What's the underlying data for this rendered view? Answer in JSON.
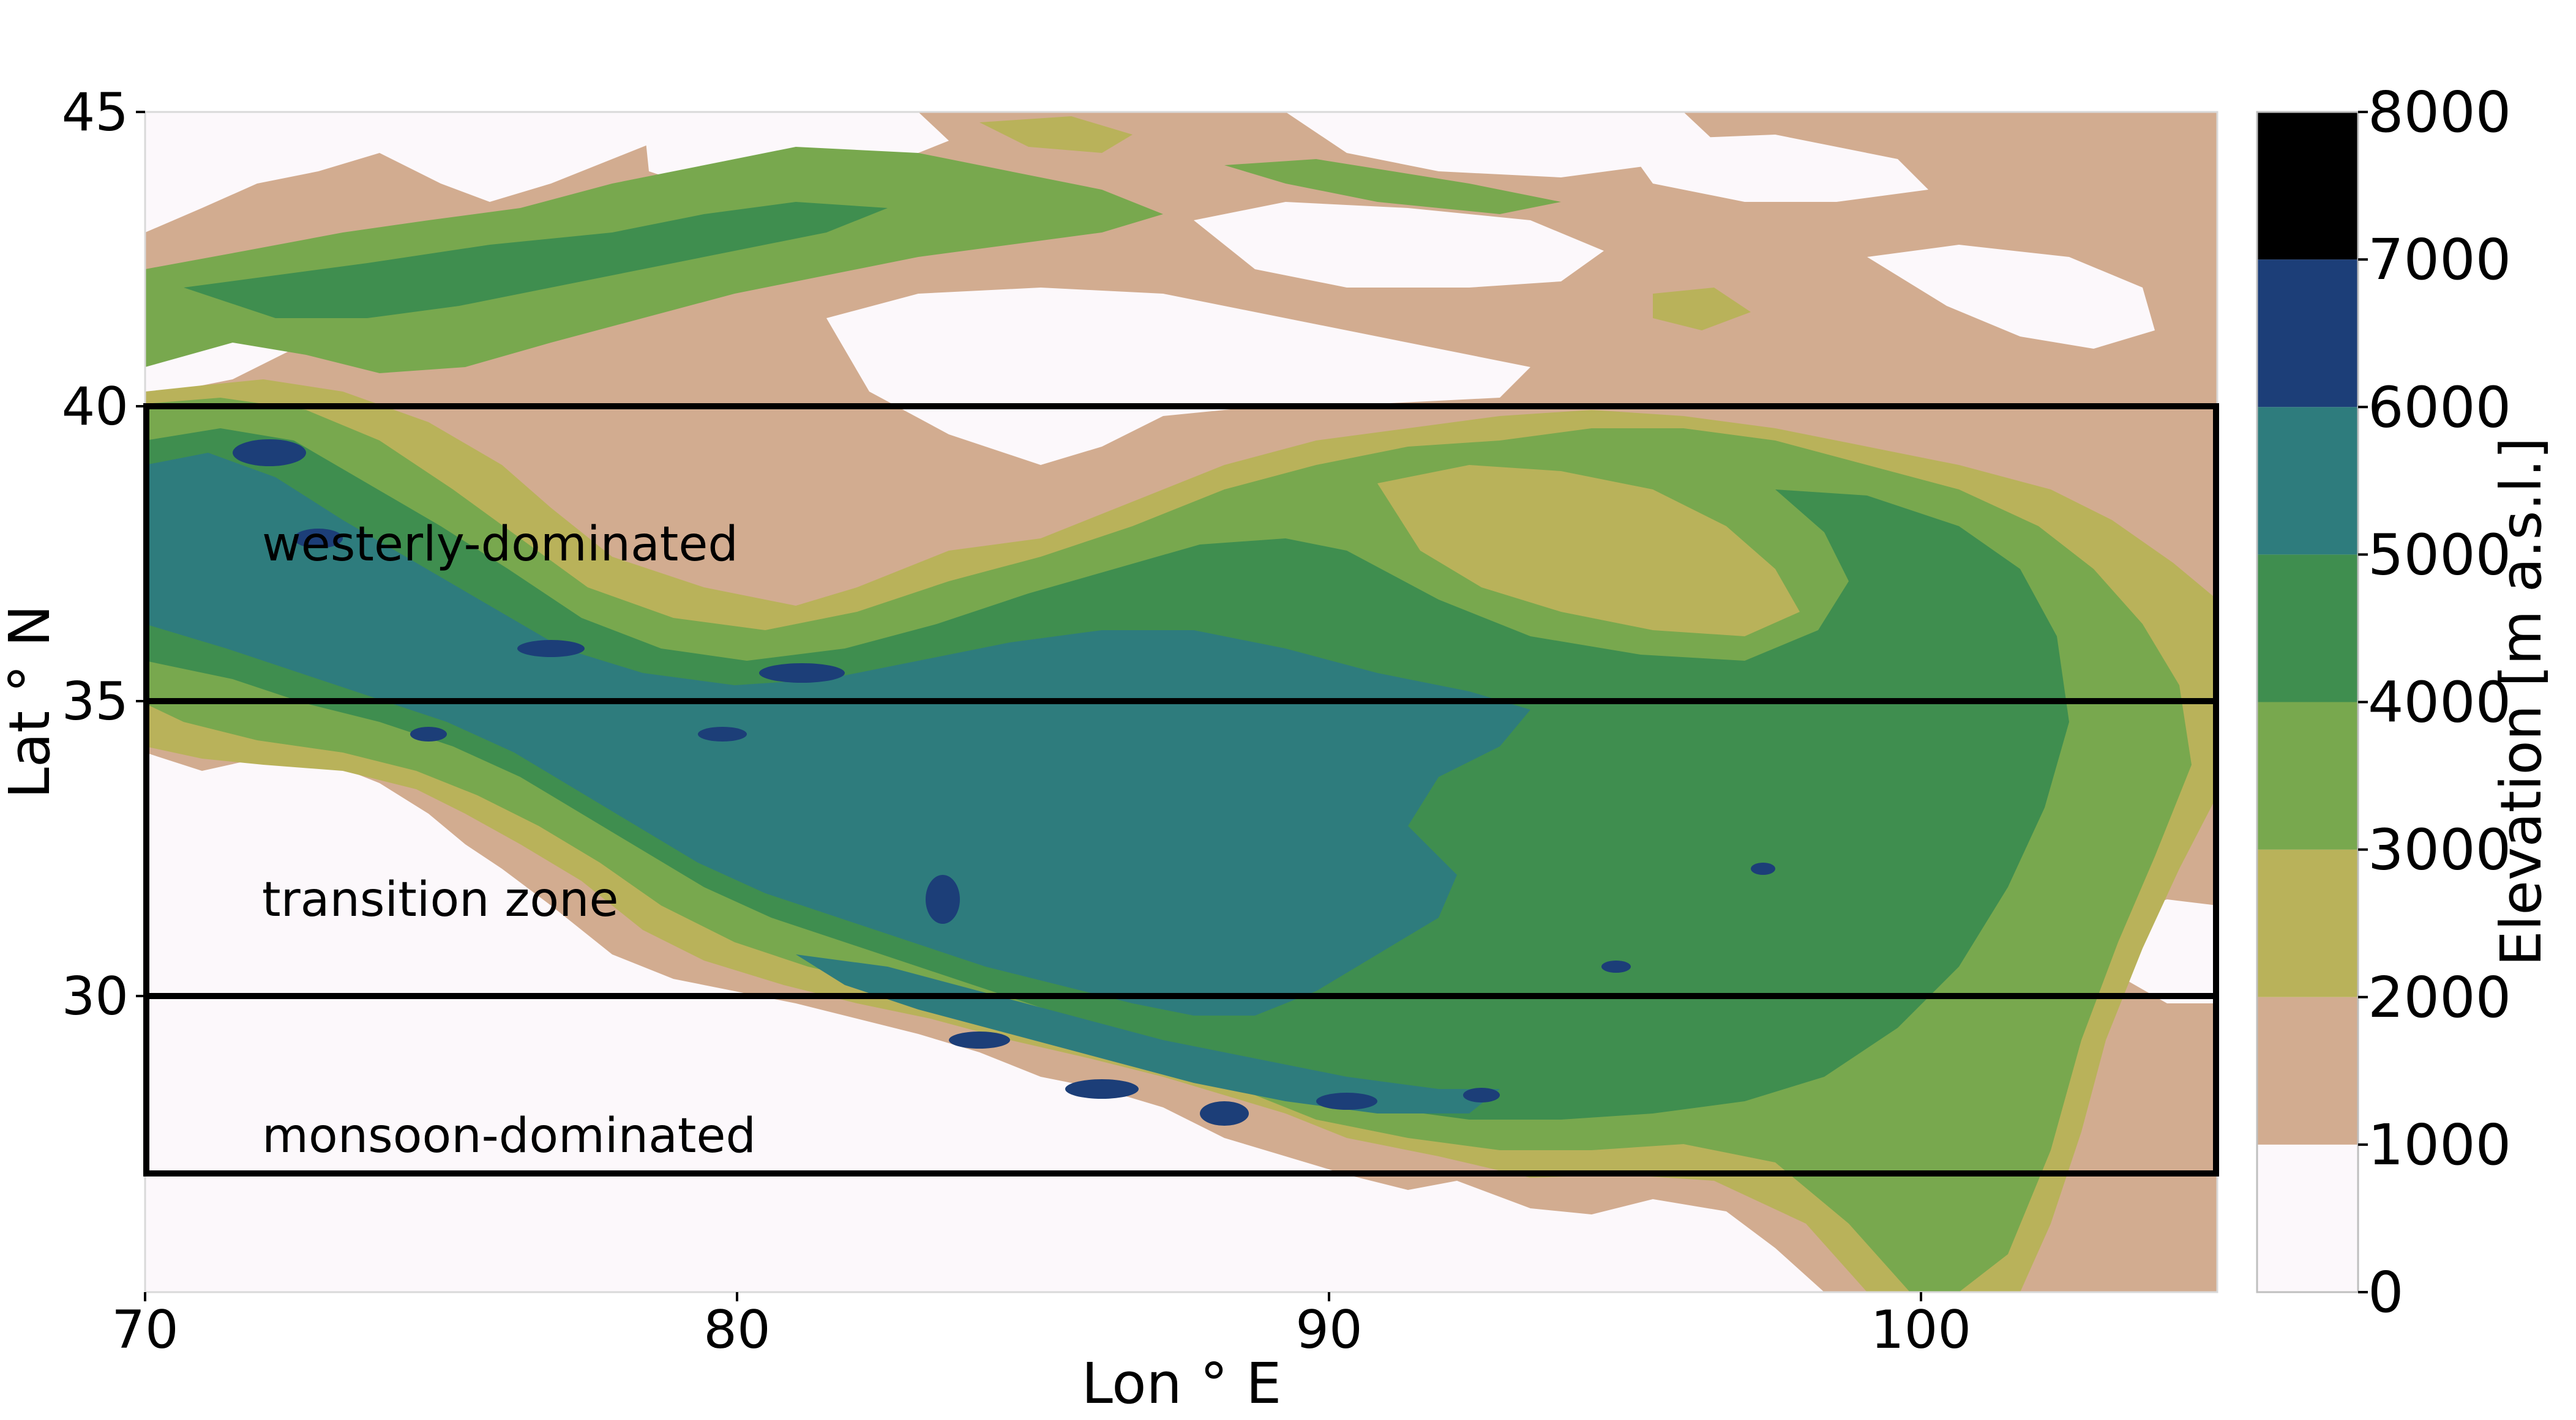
{
  "map": {
    "xlabel": "Lon ° E",
    "ylabel": "Lat ° N",
    "x_ticks": [
      70,
      80,
      90,
      100
    ],
    "y_ticks": [
      30,
      35,
      40,
      45
    ],
    "lon_range": [
      70,
      105
    ],
    "lat_range": [
      25,
      45
    ],
    "zones": [
      {
        "label": "westerly-dominated",
        "lat_min": 35,
        "lat_max": 40
      },
      {
        "label": "transition zone",
        "lat_min": 30,
        "lat_max": 35
      },
      {
        "label": "monsoon-dominated",
        "lat_min": 27,
        "lat_max": 30
      }
    ]
  },
  "colorbar": {
    "label": "Elevation [m a.s.l.]",
    "ticks": [
      0,
      1000,
      2000,
      3000,
      4000,
      5000,
      6000,
      7000,
      8000
    ],
    "colors": [
      "#fcf8fb",
      "#d2ac90",
      "#b9b25a",
      "#78a84e",
      "#3f8e4f",
      "#2e7c7d",
      "#1c3e78",
      "#000000"
    ]
  },
  "legend_colors": {
    "lowland": "#fcf8fb",
    "foothills": "#d2ac90",
    "plateau_yellow": "#b9b25a",
    "green_light": "#78a84e",
    "green_dark": "#3f8e4f",
    "teal": "#2e7c7d",
    "blue": "#1c3e78"
  }
}
